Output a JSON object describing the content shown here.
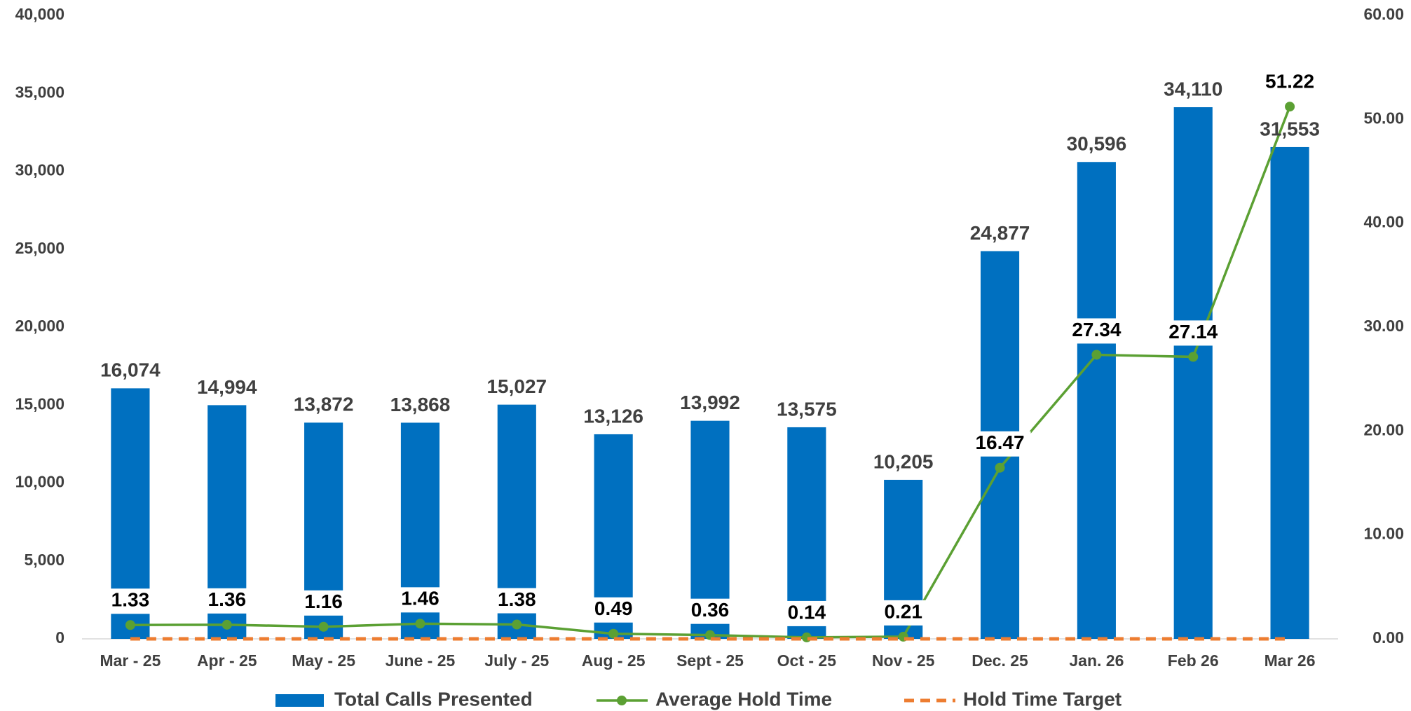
{
  "chart_data": {
    "type": "bar",
    "categories": [
      "Mar - 25",
      "Apr - 25",
      "May - 25",
      "June - 25",
      "July - 25",
      "Aug - 25",
      "Sept - 25",
      "Oct - 25",
      "Nov - 25",
      "Dec. 25",
      "Jan. 26",
      "Feb 26",
      "Mar 26"
    ],
    "series": [
      {
        "name": "Total Calls Presented",
        "type": "bar",
        "color": "#0070c0",
        "values": [
          16074,
          14994,
          13872,
          13868,
          15027,
          13126,
          13992,
          13575,
          10205,
          24877,
          30596,
          34110,
          31553
        ],
        "value_labels": [
          "16,074",
          "14,994",
          "13,872",
          "13,868",
          "15,027",
          "13,126",
          "13,992",
          "13,575",
          "10,205",
          "24,877",
          "30,596",
          "34,110",
          "31,553"
        ]
      },
      {
        "name": "Average Hold Time",
        "type": "line",
        "axis": "y2",
        "color": "#5ba033",
        "values": [
          1.33,
          1.36,
          1.16,
          1.46,
          1.38,
          0.49,
          0.36,
          0.14,
          0.21,
          16.47,
          27.34,
          27.14,
          51.22
        ]
      },
      {
        "name": "Hold Time Target",
        "type": "line",
        "axis": "y2",
        "color": "#ed7d31",
        "dashed": true,
        "values": [
          0,
          0,
          0,
          0,
          0,
          0,
          0,
          0,
          0,
          0,
          0,
          0,
          0
        ]
      }
    ],
    "ylim": [
      0,
      40000
    ],
    "yticks": [
      0,
      {
        "value": 5000,
        "label": "5,000"
      },
      {
        "value": 10000,
        "label": "10,000"
      },
      {
        "value": 15000,
        "label": "15,000"
      },
      {
        "value": 20000,
        "label": "20,000"
      },
      {
        "value": 25000,
        "label": "25,000"
      },
      {
        "value": 30000,
        "label": "30,000"
      },
      {
        "value": 35000,
        "label": "35,000"
      },
      {
        "value": 40000,
        "label": "40,000"
      }
    ],
    "y2lim": [
      0,
      60
    ],
    "y2ticks": [
      {
        "value": 0,
        "label": "0.00"
      },
      {
        "value": 10,
        "label": "10.00"
      },
      {
        "value": 20,
        "label": "20.00"
      },
      {
        "value": 30,
        "label": "30.00"
      },
      {
        "value": 40,
        "label": "40.00"
      },
      {
        "value": 50,
        "label": "50.00"
      },
      {
        "value": 60,
        "label": "60.00"
      }
    ],
    "grid": false,
    "legend": "bottom"
  }
}
